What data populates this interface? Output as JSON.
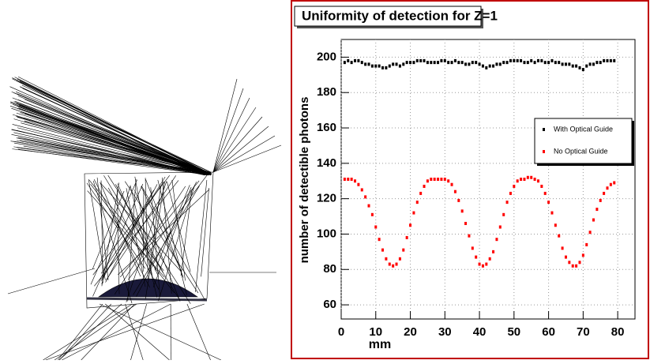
{
  "chart_data": {
    "type": "scatter",
    "title": "Uniformity of detection for Z=1",
    "x_label": "mm",
    "y_label": "number of detectible photons",
    "x": [
      1,
      2,
      3,
      4,
      5,
      6,
      7,
      8,
      9,
      10,
      11,
      12,
      13,
      14,
      15,
      16,
      17,
      18,
      19,
      20,
      21,
      22,
      23,
      24,
      25,
      26,
      27,
      28,
      29,
      30,
      31,
      32,
      33,
      34,
      35,
      36,
      37,
      38,
      39,
      40,
      41,
      42,
      43,
      44,
      45,
      46,
      47,
      48,
      49,
      50,
      51,
      52,
      53,
      54,
      55,
      56,
      57,
      58,
      59,
      60,
      61,
      62,
      63,
      64,
      65,
      66,
      67,
      68,
      69,
      70,
      71,
      72,
      73,
      74,
      75,
      76,
      77,
      78,
      79
    ],
    "series": [
      {
        "name": "With Optical Guide",
        "color": "#000000",
        "values": [
          197,
          198,
          197,
          198,
          198,
          197,
          196,
          196,
          195,
          195,
          195,
          194,
          194,
          195,
          196,
          196,
          195,
          196,
          197,
          197,
          197,
          198,
          198,
          198,
          197,
          197,
          197,
          197,
          198,
          198,
          197,
          197,
          198,
          197,
          197,
          196,
          196,
          197,
          197,
          196,
          195,
          194,
          195,
          195,
          196,
          196,
          197,
          197,
          198,
          198,
          198,
          198,
          197,
          197,
          198,
          197,
          198,
          198,
          197,
          197,
          198,
          197,
          197,
          196,
          196,
          196,
          195,
          195,
          194,
          193,
          195,
          196,
          196,
          197,
          197,
          198,
          198,
          198,
          198
        ]
      },
      {
        "name": "No Optical Guide",
        "color": "#ff0000",
        "values": [
          131,
          131,
          131,
          130,
          128,
          125,
          121,
          116,
          111,
          104,
          97,
          91,
          86,
          83,
          82,
          83,
          86,
          91,
          98,
          105,
          112,
          118,
          123,
          127,
          130,
          131,
          131,
          131,
          131,
          131,
          130,
          128,
          124,
          119,
          113,
          106,
          99,
          92,
          87,
          83,
          82,
          83,
          86,
          90,
          97,
          104,
          111,
          118,
          123,
          127,
          130,
          131,
          131,
          132,
          132,
          131,
          130,
          127,
          123,
          118,
          112,
          105,
          99,
          92,
          87,
          84,
          82,
          82,
          84,
          88,
          94,
          101,
          108,
          114,
          119,
          123,
          126,
          128,
          129
        ]
      }
    ],
    "xlim": [
      0,
      85
    ],
    "ylim": [
      52,
      210
    ],
    "xticks": [
      0,
      10,
      20,
      30,
      40,
      50,
      60,
      70,
      80
    ],
    "yticks": [
      60,
      80,
      100,
      120,
      140,
      160,
      180,
      200
    ],
    "grid": true,
    "legend": "right"
  }
}
